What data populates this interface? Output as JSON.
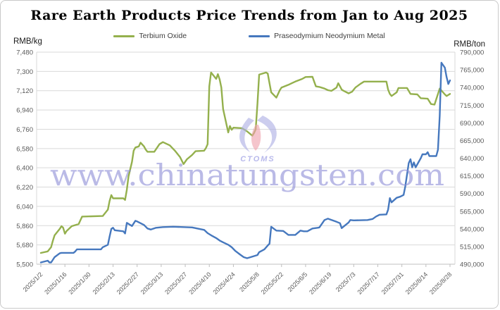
{
  "header": {
    "title": "Rare Earth Products Price Trends from Jan to Aug 2025"
  },
  "legend": [
    {
      "label": "Terbium Oxide",
      "color": "#94B04D"
    },
    {
      "label": "Praseodymium Neodymium Metal",
      "color": "#4678BE"
    }
  ],
  "axes": {
    "left_unit": "RMB/kg",
    "right_unit": "RMB/ton"
  },
  "watermark": {
    "text": "www.chinatungsten.com",
    "logo_text": "CTOMS",
    "text_color": "#9191d8",
    "logo_color": "#aeb0e4",
    "logo_accent": "#f0a3ad"
  },
  "colors": {
    "gridline": "#D9D9D9",
    "axis_line": "#BFBFBF",
    "tick_text": "#595959"
  },
  "chart_data": {
    "type": "line",
    "title": "Rare Earth Products Price Trends from Jan to Aug 2025",
    "grid": true,
    "legend_position": "top",
    "x_tick_labels": [
      "2025/1/2",
      "2025/1/16",
      "2025/1/30",
      "2025/2/13",
      "2025/2/27",
      "2025/3/13",
      "2025/3/27",
      "2025/4/10",
      "2025/4/24",
      "2025/5/8",
      "2025/5/22",
      "2025/6/5",
      "2025/6/19",
      "2025/7/3",
      "2025/7/17",
      "2025/7/31",
      "2025/8/14",
      "2025/8/28"
    ],
    "left_axis": {
      "unit": "RMB/kg",
      "min": 5500,
      "max": 7480,
      "step": 180,
      "tick_labels": [
        "7,480",
        "7,300",
        "7,120",
        "6,940",
        "6,760",
        "6,580",
        "6,400",
        "6,220",
        "6,040",
        "5,860",
        "5,680",
        "5,500"
      ]
    },
    "right_axis": {
      "unit": "RMB/ton",
      "min": 490000,
      "max": 790000,
      "step": 25000,
      "tick_labels": [
        "790,000",
        "765,000",
        "740,000",
        "715,000",
        "690,000",
        "665,000",
        "640,000",
        "615,000",
        "590,000",
        "565,000",
        "540,000",
        "515,000",
        "490,000"
      ]
    },
    "series": [
      {
        "name": "Terbium Oxide",
        "axis": "left",
        "color": "#94B04D",
        "points": [
          [
            "1/2",
            5605
          ],
          [
            "1/6",
            5620
          ],
          [
            "1/8",
            5660
          ],
          [
            "1/9",
            5720
          ],
          [
            "1/10",
            5770
          ],
          [
            "1/13",
            5830
          ],
          [
            "1/14",
            5855
          ],
          [
            "1/15",
            5840
          ],
          [
            "1/16",
            5785
          ],
          [
            "1/17",
            5810
          ],
          [
            "1/20",
            5855
          ],
          [
            "1/22",
            5865
          ],
          [
            "1/24",
            5875
          ],
          [
            "1/26",
            5945
          ],
          [
            "2/7",
            5950
          ],
          [
            "2/10",
            6010
          ],
          [
            "2/11",
            6090
          ],
          [
            "2/12",
            6145
          ],
          [
            "2/13",
            6115
          ],
          [
            "2/19",
            6115
          ],
          [
            "2/20",
            6100
          ],
          [
            "2/21",
            6195
          ],
          [
            "2/22",
            6320
          ],
          [
            "2/24",
            6455
          ],
          [
            "2/25",
            6560
          ],
          [
            "2/26",
            6590
          ],
          [
            "2/28",
            6600
          ],
          [
            "3/1",
            6635
          ],
          [
            "3/3",
            6600
          ],
          [
            "3/4",
            6570
          ],
          [
            "3/5",
            6550
          ],
          [
            "3/9",
            6550
          ],
          [
            "3/12",
            6620
          ],
          [
            "3/14",
            6640
          ],
          [
            "3/18",
            6610
          ],
          [
            "3/21",
            6560
          ],
          [
            "3/24",
            6500
          ],
          [
            "3/26",
            6435
          ],
          [
            "3/28",
            6480
          ],
          [
            "3/31",
            6520
          ],
          [
            "4/2",
            6555
          ],
          [
            "4/7",
            6560
          ],
          [
            "4/8",
            6585
          ],
          [
            "4/9",
            6620
          ],
          [
            "4/10",
            7160
          ],
          [
            "4/11",
            7290
          ],
          [
            "4/14",
            7230
          ],
          [
            "4/15",
            7275
          ],
          [
            "4/16",
            7225
          ],
          [
            "4/17",
            7150
          ],
          [
            "4/18",
            6950
          ],
          [
            "4/21",
            6730
          ],
          [
            "4/22",
            6790
          ],
          [
            "4/23",
            6755
          ],
          [
            "4/24",
            6775
          ],
          [
            "4/29",
            6770
          ],
          [
            "5/2",
            6740
          ],
          [
            "5/5",
            6700
          ],
          [
            "5/6",
            6725
          ],
          [
            "5/7",
            6760
          ],
          [
            "5/8",
            7000
          ],
          [
            "5/9",
            7270
          ],
          [
            "5/12",
            7285
          ],
          [
            "5/13",
            7290
          ],
          [
            "5/14",
            7280
          ],
          [
            "5/15",
            7190
          ],
          [
            "5/16",
            7105
          ],
          [
            "5/19",
            7055
          ],
          [
            "5/20",
            7090
          ],
          [
            "5/21",
            7125
          ],
          [
            "5/22",
            7150
          ],
          [
            "5/26",
            7175
          ],
          [
            "5/28",
            7190
          ],
          [
            "5/30",
            7205
          ],
          [
            "6/3",
            7230
          ],
          [
            "6/5",
            7248
          ],
          [
            "6/9",
            7250
          ],
          [
            "6/10",
            7205
          ],
          [
            "6/11",
            7160
          ],
          [
            "6/13",
            7155
          ],
          [
            "6/16",
            7140
          ],
          [
            "6/18",
            7125
          ],
          [
            "6/20",
            7118
          ],
          [
            "6/23",
            7150
          ],
          [
            "6/24",
            7190
          ],
          [
            "6/25",
            7160
          ],
          [
            "6/26",
            7130
          ],
          [
            "6/27",
            7120
          ],
          [
            "6/30",
            7095
          ],
          [
            "7/2",
            7110
          ],
          [
            "7/4",
            7150
          ],
          [
            "7/7",
            7185
          ],
          [
            "7/9",
            7205
          ],
          [
            "7/22",
            7205
          ],
          [
            "7/23",
            7130
          ],
          [
            "7/24",
            7090
          ],
          [
            "7/25",
            7070
          ],
          [
            "7/28",
            7105
          ],
          [
            "7/29",
            7145
          ],
          [
            "8/3",
            7145
          ],
          [
            "8/5",
            7090
          ],
          [
            "8/9",
            7085
          ],
          [
            "8/11",
            7050
          ],
          [
            "8/15",
            7045
          ],
          [
            "8/17",
            6995
          ],
          [
            "8/19",
            6990
          ],
          [
            "8/22",
            7140
          ],
          [
            "8/25",
            7085
          ],
          [
            "8/26",
            7070
          ],
          [
            "8/28",
            7090
          ]
        ]
      },
      {
        "name": "Praseodymium Neodymium Metal",
        "axis": "right",
        "color": "#4678BE",
        "points": [
          [
            "1/2",
            492500
          ],
          [
            "1/6",
            495000
          ],
          [
            "1/7",
            492500
          ],
          [
            "1/8",
            492500
          ],
          [
            "1/10",
            500000
          ],
          [
            "1/13",
            505500
          ],
          [
            "1/14",
            506000
          ],
          [
            "1/21",
            506000
          ],
          [
            "1/22",
            508000
          ],
          [
            "1/23",
            511000
          ],
          [
            "2/6",
            511000
          ],
          [
            "2/7",
            514000
          ],
          [
            "2/10",
            517500
          ],
          [
            "2/11",
            529000
          ],
          [
            "2/12",
            540000
          ],
          [
            "2/13",
            541500
          ],
          [
            "2/14",
            538000
          ],
          [
            "2/19",
            536500
          ],
          [
            "2/20",
            533500
          ],
          [
            "2/21",
            548500
          ],
          [
            "2/24",
            544000
          ],
          [
            "2/26",
            551500
          ],
          [
            "2/27",
            550500
          ],
          [
            "3/3",
            545500
          ],
          [
            "3/5",
            540500
          ],
          [
            "3/7",
            539000
          ],
          [
            "3/10",
            541500
          ],
          [
            "3/14",
            542500
          ],
          [
            "3/20",
            543000
          ],
          [
            "3/31",
            542000
          ],
          [
            "4/3",
            540500
          ],
          [
            "4/7",
            538500
          ],
          [
            "4/9",
            534000
          ],
          [
            "4/11",
            531000
          ],
          [
            "4/14",
            527000
          ],
          [
            "4/16",
            523500
          ],
          [
            "4/18",
            521000
          ],
          [
            "4/21",
            517500
          ],
          [
            "4/23",
            514000
          ],
          [
            "4/25",
            509000
          ],
          [
            "4/28",
            503500
          ],
          [
            "4/30",
            500000
          ],
          [
            "5/2",
            498500
          ],
          [
            "5/6",
            501500
          ],
          [
            "5/8",
            503000
          ],
          [
            "5/9",
            507000
          ],
          [
            "5/12",
            511000
          ],
          [
            "5/14",
            516500
          ],
          [
            "5/15",
            519000
          ],
          [
            "5/16",
            543000
          ],
          [
            "5/19",
            537500
          ],
          [
            "5/23",
            537000
          ],
          [
            "5/26",
            531500
          ],
          [
            "5/30",
            531500
          ],
          [
            "6/2",
            537500
          ],
          [
            "6/4",
            536500
          ],
          [
            "6/6",
            536500
          ],
          [
            "6/9",
            540500
          ],
          [
            "6/12",
            541500
          ],
          [
            "6/13",
            542000
          ],
          [
            "6/16",
            552500
          ],
          [
            "6/18",
            554500
          ],
          [
            "6/19",
            553500
          ],
          [
            "6/23",
            550000
          ],
          [
            "6/25",
            548000
          ],
          [
            "6/26",
            541000
          ],
          [
            "6/27",
            543000
          ],
          [
            "6/30",
            549000
          ],
          [
            "7/1",
            552500
          ],
          [
            "7/3",
            552000
          ],
          [
            "7/11",
            552500
          ],
          [
            "7/14",
            554000
          ],
          [
            "7/16",
            557500
          ],
          [
            "7/18",
            560000
          ],
          [
            "7/22",
            560500
          ],
          [
            "7/23",
            567000
          ],
          [
            "7/24",
            583500
          ],
          [
            "7/25",
            577500
          ],
          [
            "7/28",
            584000
          ],
          [
            "7/30",
            585500
          ],
          [
            "8/1",
            588000
          ],
          [
            "8/2",
            600000
          ],
          [
            "8/4",
            633000
          ],
          [
            "8/5",
            638500
          ],
          [
            "8/6",
            627000
          ],
          [
            "8/7",
            634000
          ],
          [
            "8/8",
            627000
          ],
          [
            "8/11",
            640000
          ],
          [
            "8/12",
            645500
          ],
          [
            "8/14",
            645500
          ],
          [
            "8/15",
            648500
          ],
          [
            "8/16",
            643000
          ],
          [
            "8/20",
            643000
          ],
          [
            "8/21",
            652000
          ],
          [
            "8/22",
            700000
          ],
          [
            "8/23",
            775000
          ],
          [
            "8/25",
            768000
          ],
          [
            "8/26",
            755000
          ],
          [
            "8/27",
            745000
          ],
          [
            "8/28",
            750000
          ]
        ]
      }
    ]
  }
}
